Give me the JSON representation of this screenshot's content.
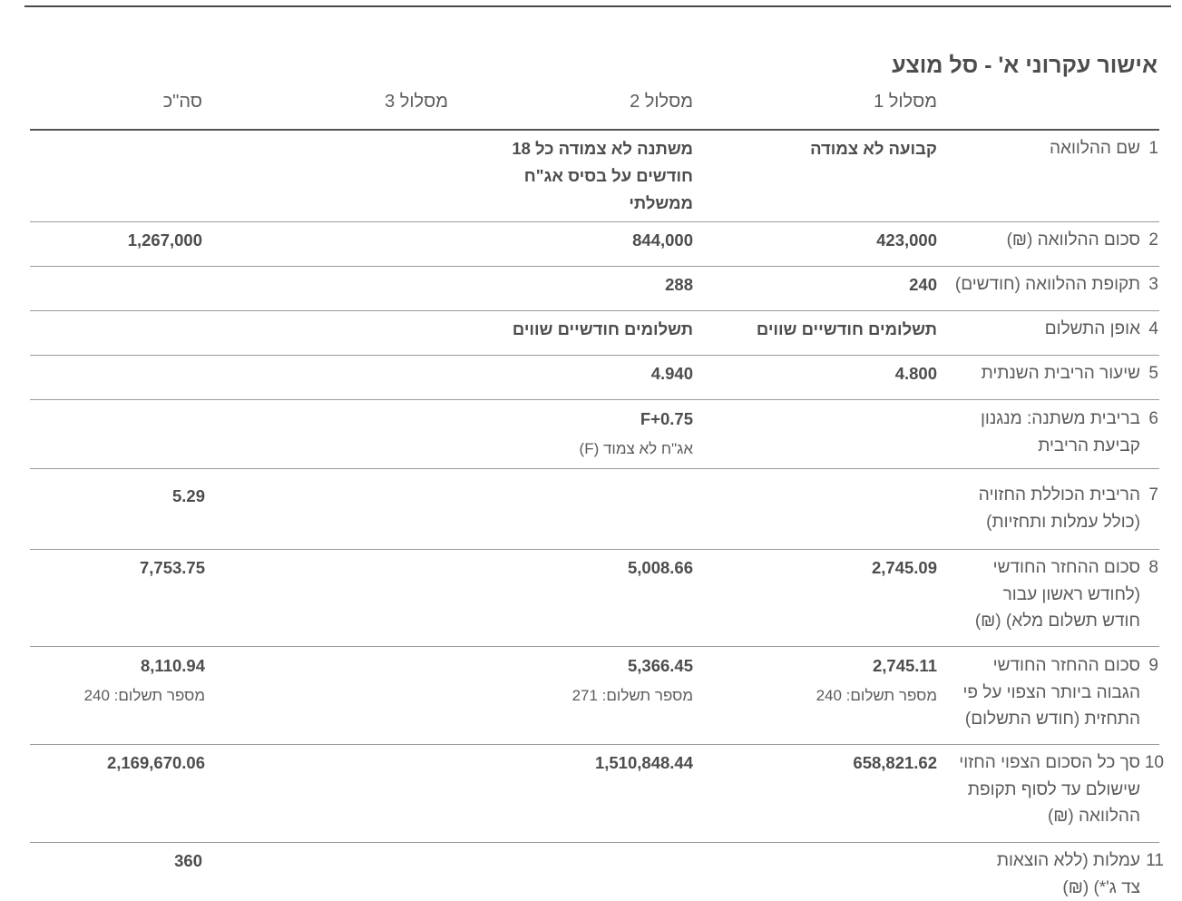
{
  "title": "אישור עקרוני א' - סל מוצע",
  "columns": [
    "מסלול 1",
    "מסלול 2",
    "מסלול 3",
    "סה\"כ"
  ],
  "rows": [
    {
      "num": "1",
      "label": "שם ההלוואה",
      "track1": "קבועה לא צמודה",
      "track2": "משתנה לא צמודה כל 18\nחודשים על בסיס אג\"ח\nממשלתי",
      "track3": "",
      "total": ""
    },
    {
      "num": "2",
      "label": "סכום ההלוואה (₪)",
      "track1": "423,000",
      "track2": "844,000",
      "track3": "",
      "total": "1,267,000"
    },
    {
      "num": "3",
      "label": "תקופת ההלוואה (חודשים)",
      "track1": "240",
      "track2": "288",
      "track3": "",
      "total": ""
    },
    {
      "num": "4",
      "label": "אופן התשלום",
      "track1": "תשלומים חודשיים שווים",
      "track2": "תשלומים חודשיים שווים",
      "track3": "",
      "total": ""
    },
    {
      "num": "5",
      "label": "שיעור הריבית השנתית",
      "track1": "4.800",
      "track2": "4.940",
      "track3": "",
      "total": ""
    },
    {
      "num": "6",
      "label": "בריבית משתנה: מנגנון\nקביעת הריבית",
      "track1": "",
      "track2": "F+0.75",
      "track2_sub": "אג\"ח לא צמוד (F)",
      "track3": "",
      "total": ""
    },
    {
      "num": "7",
      "label": "הריבית הכוללת החזויה\n(כולל עמלות ותחזיות)",
      "track1": "",
      "track2": "",
      "track3": "",
      "total": "5.29"
    },
    {
      "num": "8",
      "label": "סכום ההחזר החודשי\n(לחודש ראשון עבור\nחודש תשלום מלא) (₪)",
      "track1": "2,745.09",
      "track2": "5,008.66",
      "track3": "",
      "total": "7,753.75"
    },
    {
      "num": "9",
      "label": "סכום ההחזר החודשי\nהגבוה ביותר הצפוי על פי\nהתחזית (חודש התשלום)",
      "track1": "2,745.11",
      "track1_sub": "מספר תשלום: 240",
      "track2": "5,366.45",
      "track2_sub": "מספר תשלום: 271",
      "track3": "",
      "total": "8,110.94",
      "total_sub": "מספר תשלום: 240"
    },
    {
      "num": "10",
      "label": "סך כל הסכום הצפוי החזוי\nשישולם עד לסוף תקופת\nההלוואה (₪)",
      "track1": "658,821.62",
      "track2": "1,510,848.44",
      "track3": "",
      "total": "2,169,670.06"
    },
    {
      "num": "11",
      "label": "עמלות (ללא הוצאות\nצד ג'*) (₪)",
      "track1": "",
      "track2": "",
      "track3": "",
      "total": "360"
    }
  ]
}
